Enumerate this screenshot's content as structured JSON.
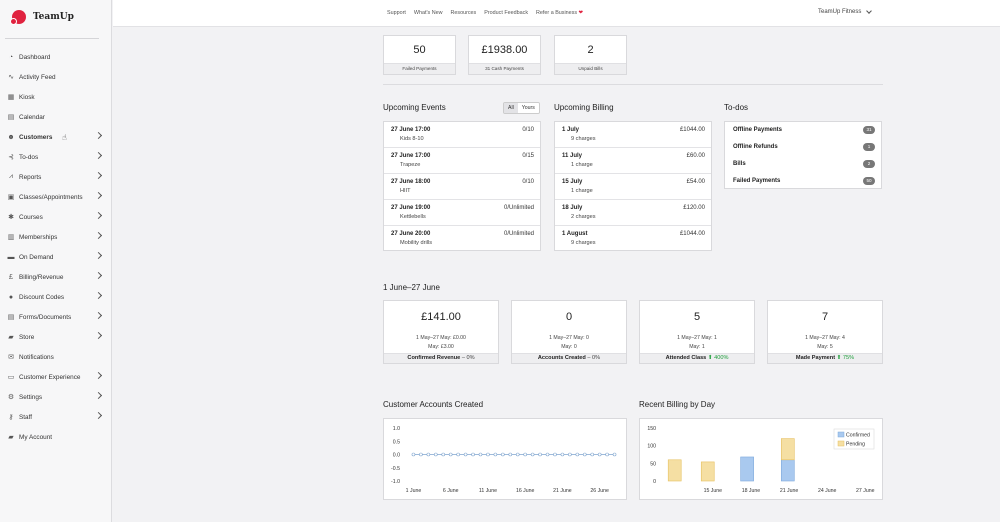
{
  "brand": {
    "name": "TeamUp"
  },
  "sidebar": {
    "items": [
      {
        "label": "Dashboard",
        "icon": "dashboard-icon",
        "glyph": "◔",
        "chevron": false
      },
      {
        "label": "Activity Feed",
        "icon": "activity-icon",
        "glyph": "∿",
        "chevron": false
      },
      {
        "label": "Kiosk",
        "icon": "kiosk-icon",
        "glyph": "▦",
        "chevron": false
      },
      {
        "label": "Calendar",
        "icon": "calendar-icon",
        "glyph": "▤",
        "chevron": false
      },
      {
        "label": "Customers",
        "icon": "users-icon",
        "glyph": "☻",
        "chevron": true,
        "active": true
      },
      {
        "label": "To-dos",
        "icon": "todos-icon",
        "glyph": "⊰",
        "chevron": true
      },
      {
        "label": "Reports",
        "icon": "reports-icon",
        "glyph": "⩘",
        "chevron": true
      },
      {
        "label": "Classes/Appointments",
        "icon": "classes-icon",
        "glyph": "▣",
        "chevron": true
      },
      {
        "label": "Courses",
        "icon": "courses-icon",
        "glyph": "✱",
        "chevron": true
      },
      {
        "label": "Memberships",
        "icon": "memberships-icon",
        "glyph": "▥",
        "chevron": true
      },
      {
        "label": "On Demand",
        "icon": "on-demand-icon",
        "glyph": "▬",
        "chevron": true
      },
      {
        "label": "Billing/Revenue",
        "icon": "pound-icon",
        "glyph": "£",
        "chevron": true
      },
      {
        "label": "Discount Codes",
        "icon": "discount-icon",
        "glyph": "●",
        "chevron": true
      },
      {
        "label": "Forms/Documents",
        "icon": "forms-icon",
        "glyph": "▤",
        "chevron": true
      },
      {
        "label": "Store",
        "icon": "store-icon",
        "glyph": "▰",
        "chevron": true
      },
      {
        "label": "Notifications",
        "icon": "notifications-icon",
        "glyph": "✉",
        "chevron": false
      },
      {
        "label": "Customer Experience",
        "icon": "experience-icon",
        "glyph": "▭",
        "chevron": true
      },
      {
        "label": "Settings",
        "icon": "gear-icon",
        "glyph": "⚙",
        "chevron": true
      },
      {
        "label": "Staff",
        "icon": "key-icon",
        "glyph": "⚷",
        "chevron": true
      },
      {
        "label": "My Account",
        "icon": "lock-icon",
        "glyph": "▰",
        "chevron": false
      }
    ]
  },
  "topbar": {
    "links": [
      "Support",
      "What's New",
      "Resources",
      "Product Feedback",
      "Refer a Business"
    ],
    "refer_heart": "❤",
    "account": "TeamUp Fitness"
  },
  "payments": [
    {
      "value": "50",
      "label": "Failed Payments"
    },
    {
      "value": "£1938.00",
      "label": "31 Cash Payments"
    },
    {
      "value": "2",
      "label": "Unpaid Bills"
    }
  ],
  "upcoming_events": {
    "title": "Upcoming Events",
    "toggle": [
      "All",
      "Yours"
    ],
    "rows": [
      {
        "when": "27 June 17:00",
        "name": "Kids 8-10",
        "count": "0/10"
      },
      {
        "when": "27 June 17:00",
        "name": "Trapeze",
        "count": "0/15"
      },
      {
        "when": "27 June 18:00",
        "name": "HIIT",
        "count": "0/10"
      },
      {
        "when": "27 June 19:00",
        "name": "Kettlebells",
        "count": "0/Unlimited"
      },
      {
        "when": "27 June 20:00",
        "name": "Mobility drills",
        "count": "0/Unlimited"
      }
    ]
  },
  "upcoming_billing": {
    "title": "Upcoming Billing",
    "rows": [
      {
        "date": "1 July",
        "charges": "9 charges",
        "amount": "£1044.00"
      },
      {
        "date": "11 July",
        "charges": "1 charge",
        "amount": "£60.00"
      },
      {
        "date": "15 July",
        "charges": "1 charge",
        "amount": "£54.00"
      },
      {
        "date": "18 July",
        "charges": "2 charges",
        "amount": "£120.00"
      },
      {
        "date": "1 August",
        "charges": "9 charges",
        "amount": "£1044.00"
      }
    ]
  },
  "todos": {
    "title": "To-dos",
    "rows": [
      {
        "label": "Offline Payments",
        "count": "31"
      },
      {
        "label": "Offline Refunds",
        "count": "1"
      },
      {
        "label": "Bills",
        "count": "2"
      },
      {
        "label": "Failed Payments",
        "count": "50"
      }
    ]
  },
  "period": {
    "title": "1 June–27 June",
    "kpis": [
      {
        "value": "£141.00",
        "compare": "1 May–27 May: £0.00",
        "may": "May: £3.00",
        "label": "Confirmed Revenue",
        "trend": "–",
        "pct": "0%",
        "up": false
      },
      {
        "value": "0",
        "compare": "1 May–27 May: 0",
        "may": "May: 0",
        "label": "Accounts Created",
        "trend": "–",
        "pct": "0%",
        "up": false
      },
      {
        "value": "5",
        "compare": "1 May–27 May: 1",
        "may": "May: 1",
        "label": "Attended Class",
        "trend": "⬆",
        "pct": "400%",
        "up": true
      },
      {
        "value": "7",
        "compare": "1 May–27 May: 4",
        "may": "May: 5",
        "label": "Made Payment",
        "trend": "⬆",
        "pct": "75%",
        "up": true
      }
    ]
  },
  "chart_data": [
    {
      "type": "line",
      "title": "Customer Accounts Created",
      "y_ticks": [
        "1.0",
        "0.5",
        "0.0",
        "-0.5",
        "-1.0"
      ],
      "ylim": [
        -1.0,
        1.0
      ],
      "x_ticks": [
        "1 June",
        "6 June",
        "11 June",
        "16 June",
        "21 June",
        "26 June"
      ],
      "x_days": [
        1,
        6,
        11,
        16,
        21,
        26
      ],
      "xlim": [
        -1,
        28
      ],
      "x": [
        0,
        1,
        2,
        3,
        4,
        5,
        6,
        7,
        8,
        9,
        10,
        11,
        12,
        13,
        14,
        15,
        16,
        17,
        18,
        19,
        20,
        21,
        22,
        23,
        24,
        25,
        26,
        27
      ],
      "values": [
        0,
        0,
        0,
        0,
        0,
        0,
        0,
        0,
        0,
        0,
        0,
        0,
        0,
        0,
        0,
        0,
        0,
        0,
        0,
        0,
        0,
        0,
        0,
        0,
        0,
        0,
        0,
        0
      ],
      "color": "#7fa5cf"
    },
    {
      "type": "bar",
      "title": "Recent Billing by Day",
      "y_ticks": [
        "150",
        "100",
        "50",
        "0"
      ],
      "ylim": [
        0,
        150
      ],
      "x_ticks": [
        "15 June",
        "18 June",
        "21 June",
        "24 June",
        "27 June"
      ],
      "x_days": [
        15,
        18,
        21,
        24,
        27
      ],
      "xlim": [
        11,
        28
      ],
      "legend": "top-right",
      "series": [
        {
          "name": "Confirmed",
          "color": "#a9c9ef",
          "border": "#7da9dc",
          "points": [
            {
              "day": 17.7,
              "value": 68
            },
            {
              "day": 20.9,
              "value": 60
            }
          ]
        },
        {
          "name": "Pending",
          "color": "#f5dfa3",
          "border": "#e6c060",
          "points": [
            {
              "day": 12.0,
              "value": 60
            },
            {
              "day": 14.6,
              "value": 54
            },
            {
              "day": 20.9,
              "value": 60
            }
          ]
        }
      ]
    }
  ]
}
